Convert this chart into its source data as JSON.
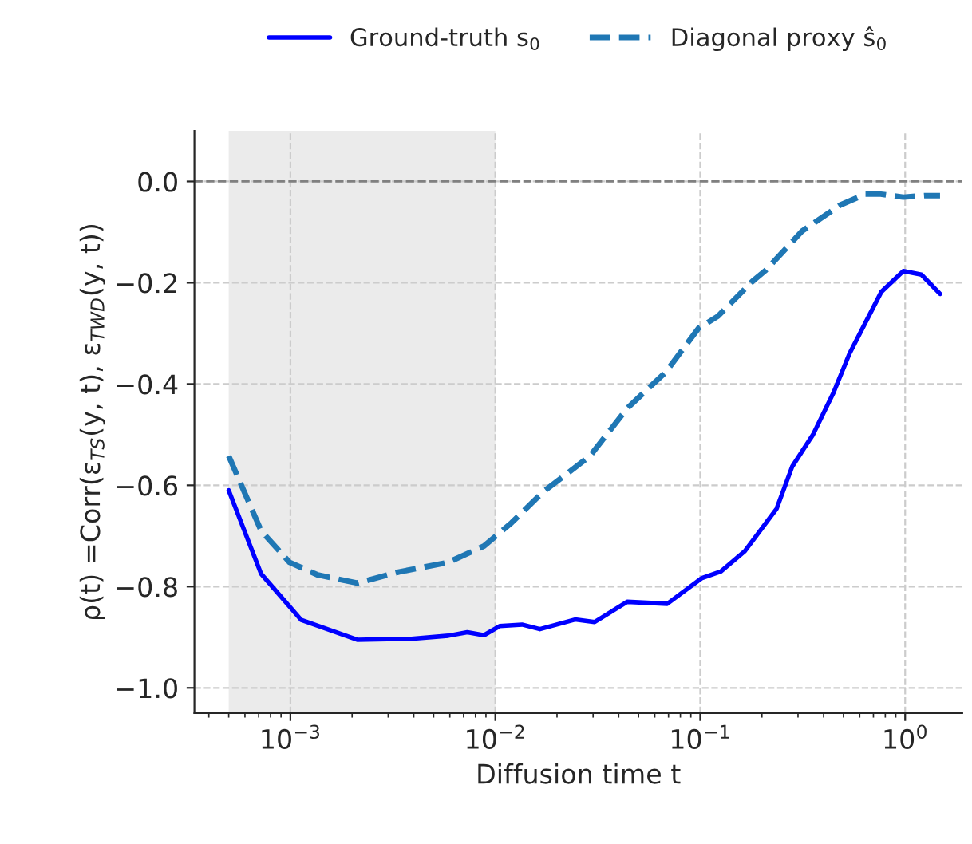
{
  "chart_data": {
    "type": "line",
    "xlabel": "Diffusion time t",
    "ylabel": "ρ(t) =Corr(ε$_{TS}$(y, t), ε$_{TWD}$(y, t))",
    "series": [
      {
        "name": "Ground-truth s$_{0}$",
        "color": "#0000ff",
        "line_style": "solid",
        "x": [
          0.0005,
          0.00072,
          0.00113,
          0.00212,
          0.0039,
          0.0059,
          0.0073,
          0.0088,
          0.0105,
          0.0135,
          0.0165,
          0.0245,
          0.0305,
          0.044,
          0.069,
          0.102,
          0.126,
          0.165,
          0.236,
          0.281,
          0.355,
          0.447,
          0.535,
          0.765,
          0.98,
          1.2,
          1.48
        ],
        "values": [
          -0.61,
          -0.775,
          -0.866,
          -0.905,
          -0.903,
          -0.897,
          -0.89,
          -0.896,
          -0.878,
          -0.875,
          -0.884,
          -0.865,
          -0.87,
          -0.83,
          -0.834,
          -0.783,
          -0.77,
          -0.73,
          -0.646,
          -0.563,
          -0.5,
          -0.417,
          -0.34,
          -0.218,
          -0.177,
          -0.184,
          -0.222
        ]
      },
      {
        "name": "Diagonal proxy ŝ$_{0}$",
        "color": "#1f77b4",
        "line_style": "dashed",
        "x": [
          0.0005,
          0.00072,
          0.00099,
          0.00136,
          0.00212,
          0.0034,
          0.0059,
          0.0088,
          0.012,
          0.017,
          0.029,
          0.044,
          0.068,
          0.098,
          0.122,
          0.18,
          0.208,
          0.314,
          0.48,
          0.64,
          0.76,
          0.98,
          1.24,
          1.48
        ],
        "values": [
          -0.542,
          -0.69,
          -0.752,
          -0.777,
          -0.793,
          -0.771,
          -0.752,
          -0.72,
          -0.674,
          -0.614,
          -0.542,
          -0.448,
          -0.376,
          -0.29,
          -0.266,
          -0.197,
          -0.176,
          -0.098,
          -0.047,
          -0.025,
          -0.025,
          -0.031,
          -0.028,
          -0.028
        ]
      }
    ],
    "log": "x",
    "xlim": [
      0.00034,
      1.9
    ],
    "xticks": [
      {
        "value": 0.001,
        "label": "10$^{−3}$"
      },
      {
        "value": 0.01,
        "label": "10$^{−2}$"
      },
      {
        "value": 0.1,
        "label": "10$^{−1}$"
      },
      {
        "value": 1,
        "label": "10$^{0}$"
      }
    ],
    "ylim": [
      -1.05,
      0.1
    ],
    "yticks": [
      {
        "value": 0.0,
        "label": "0.0"
      },
      {
        "value": -0.2,
        "label": "−0.2"
      },
      {
        "value": -0.4,
        "label": "−0.4"
      },
      {
        "value": -0.6,
        "label": "−0.6"
      },
      {
        "value": -0.8,
        "label": "−0.8"
      },
      {
        "value": -1.0,
        "label": "−1.0"
      }
    ],
    "ref_lines": [
      {
        "axis": "y",
        "value": 0,
        "color": "#808080",
        "line_style": "dashed"
      }
    ],
    "bands": [
      {
        "axis": "x",
        "from": 0.0005,
        "to": 0.01,
        "color": "#ebebeb"
      }
    ],
    "grid": true,
    "legend": "top"
  }
}
